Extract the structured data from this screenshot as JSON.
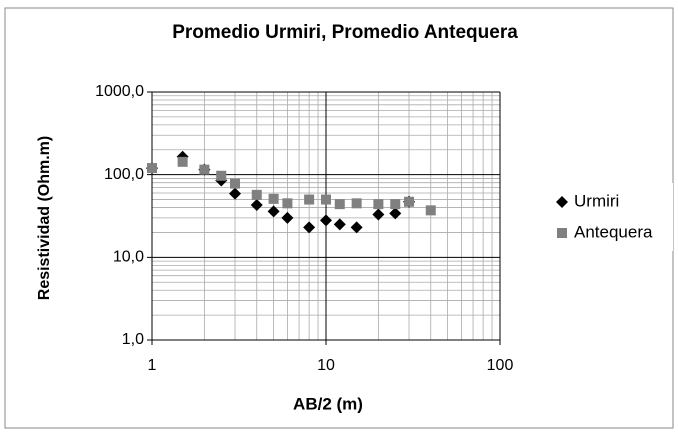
{
  "chart_data": {
    "type": "scatter",
    "title": "Promedio Urmiri, Promedio Antequera",
    "x_label": "AB/2  (m)",
    "y_label": "Resistividad (Ohm.m)",
    "xscale": "log",
    "yscale": "log",
    "grid": true,
    "minor_grid": true,
    "legend": "right",
    "xlim": [
      1,
      100
    ],
    "xticks": [
      1,
      10,
      100
    ],
    "ylim": [
      1,
      1000
    ],
    "yticks": [
      {
        "value": 1,
        "label": "1,0"
      },
      {
        "value": 10,
        "label": "10,0"
      },
      {
        "value": 100,
        "label": "100,0"
      },
      {
        "value": 1000,
        "label": "1000,0"
      }
    ],
    "series": [
      {
        "name": "Urmiri",
        "color": "#000000",
        "marker": "diamond",
        "x": [
          1,
          1.5,
          2,
          2.5,
          3,
          4,
          5,
          6,
          8,
          10,
          12,
          15,
          20,
          25,
          30
        ],
        "values": [
          120,
          165,
          115,
          85,
          59,
          43,
          36,
          30,
          23,
          28,
          25,
          23,
          33,
          34,
          47
        ]
      },
      {
        "name": "Antequera",
        "color": "#808080",
        "marker": "square",
        "x": [
          1,
          1.5,
          2,
          2.5,
          3,
          4,
          5,
          6,
          8,
          10,
          12,
          15,
          20,
          25,
          30,
          40
        ],
        "values": [
          120,
          143,
          115,
          97,
          78,
          57,
          51,
          45,
          50,
          50,
          44,
          45,
          44,
          44,
          47,
          37
        ]
      }
    ]
  }
}
